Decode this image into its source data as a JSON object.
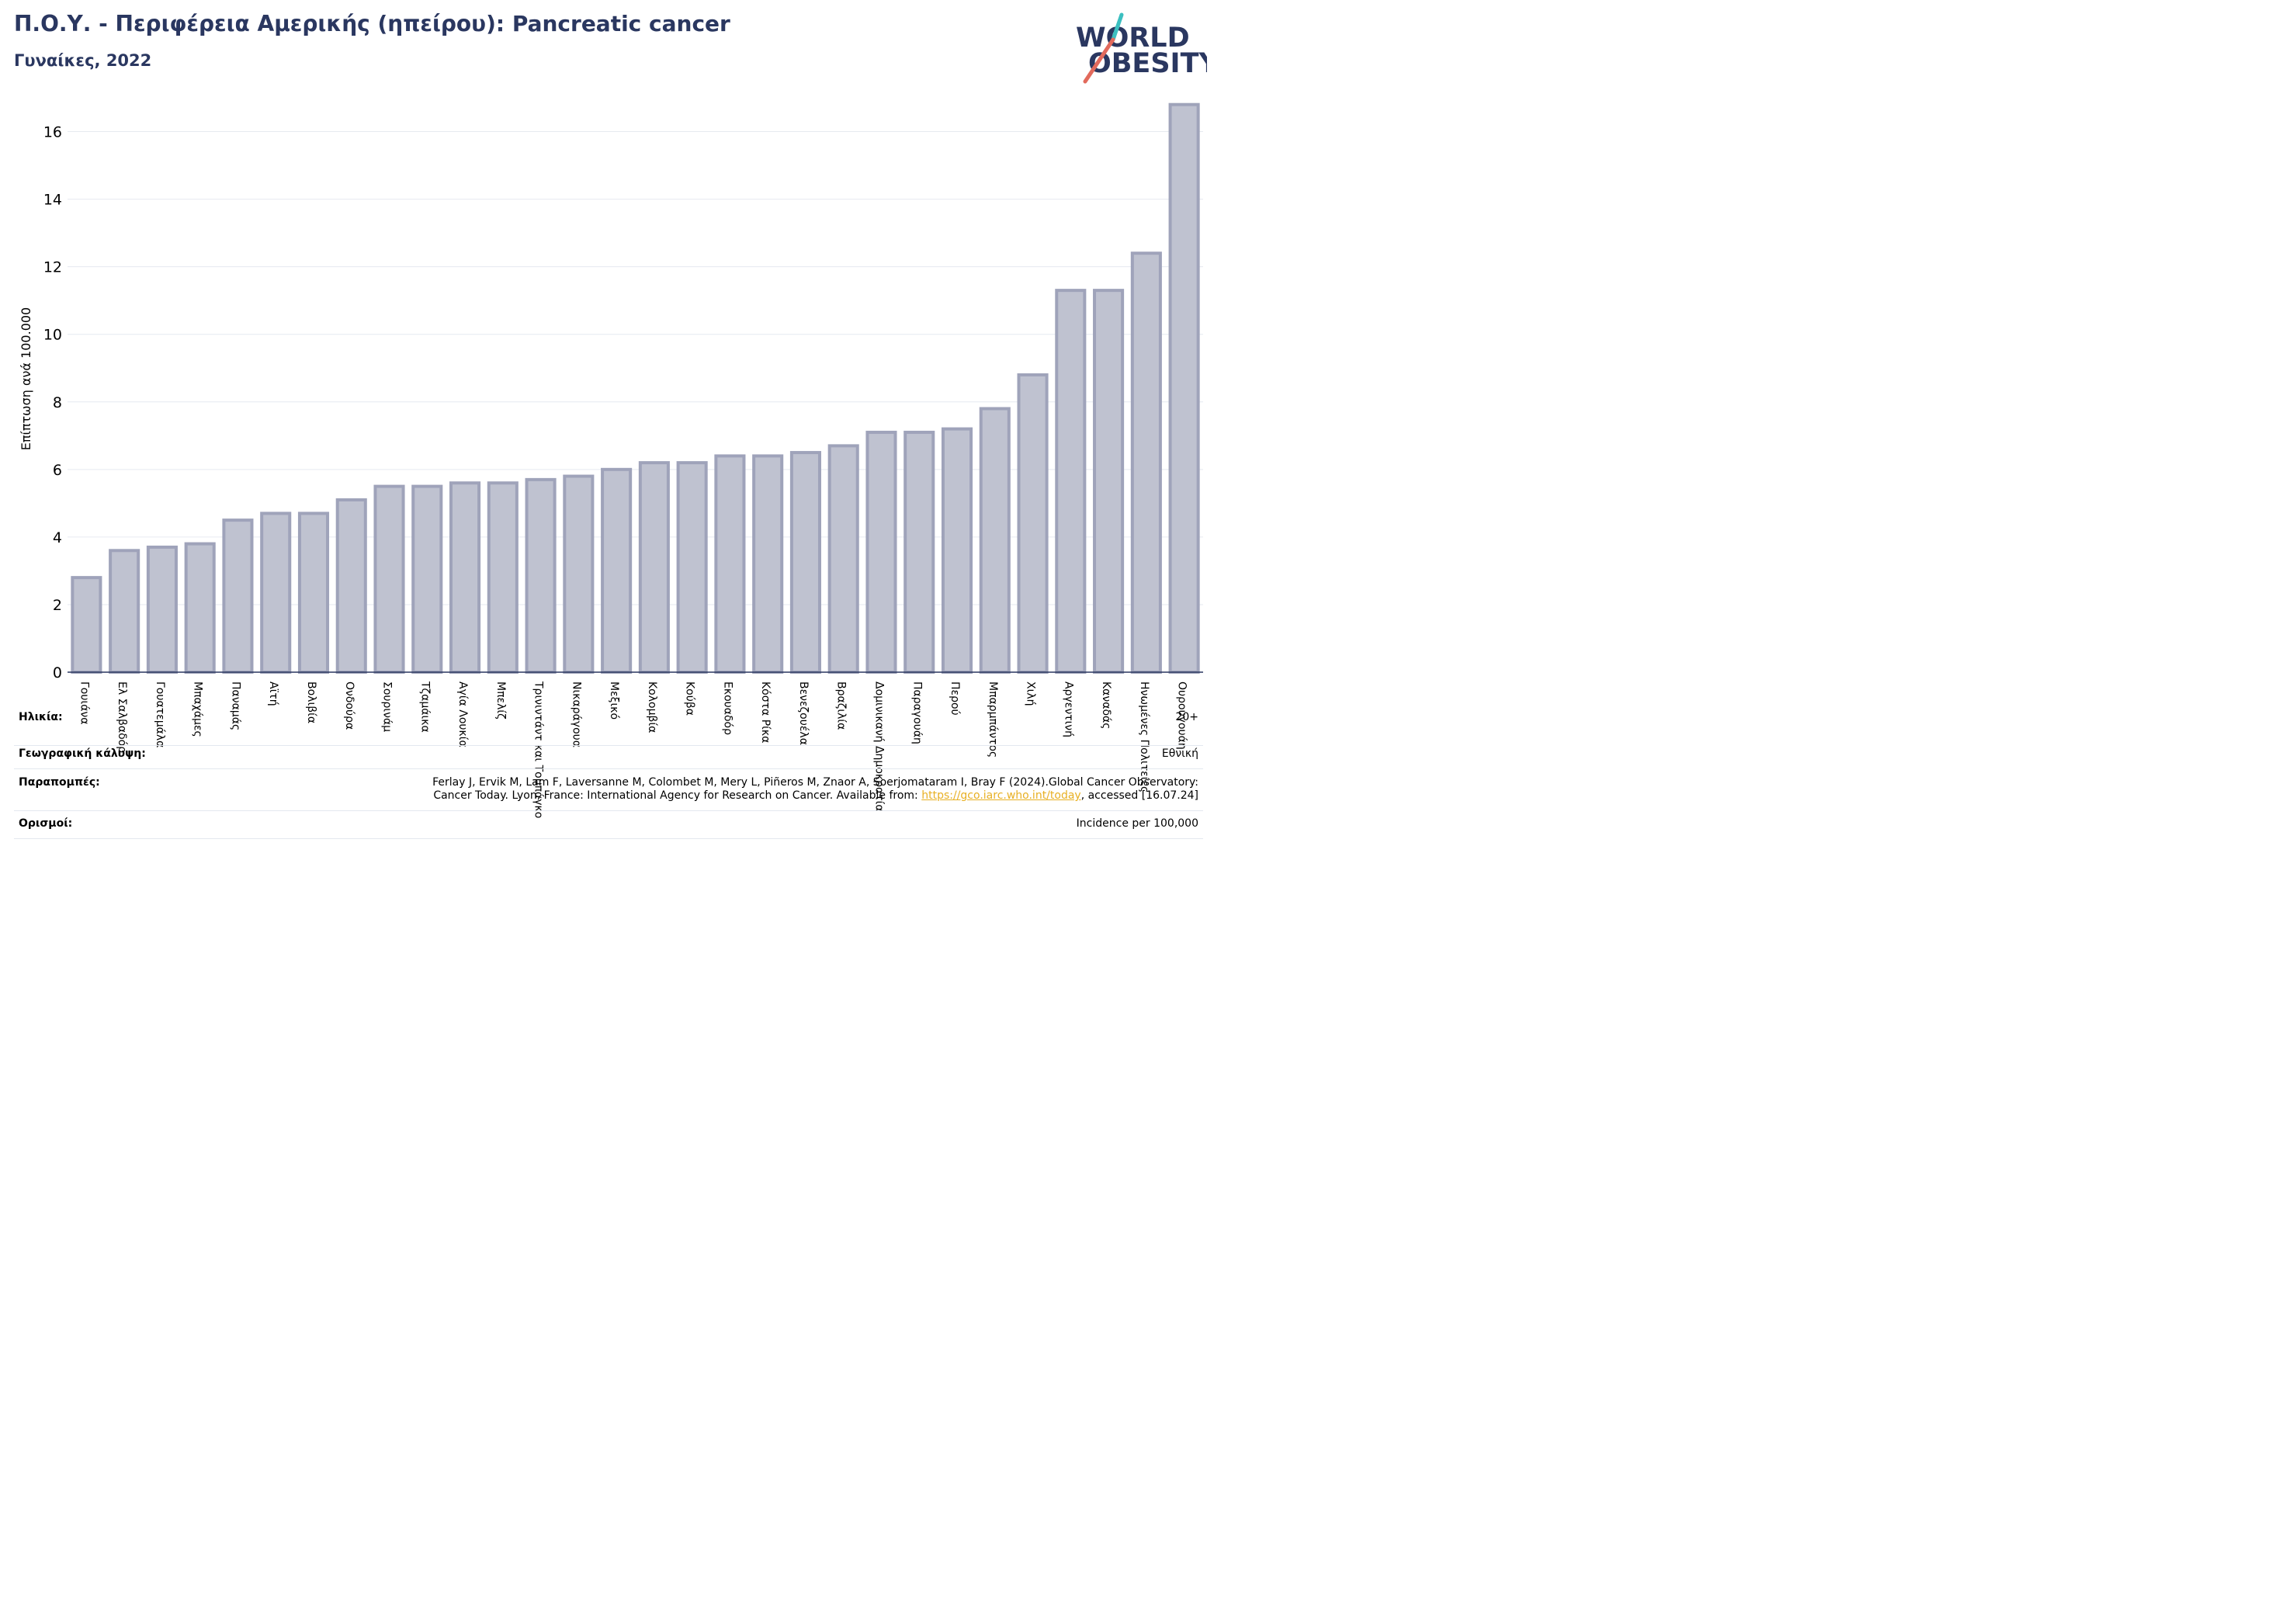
{
  "title": "Π.Ο.Υ. - Περιφέρεια Αμερικής (ηπείρου): Pancreatic cancer",
  "subtitle": "Γυναίκες, 2022",
  "logo": {
    "line1": "WORLD",
    "line2": "OBESITY"
  },
  "colors": {
    "title": "#2a3760",
    "bar_fill": "#bfc2d0",
    "bar_stroke": "#9fa3ba",
    "logo_teal": "#3bbfc0",
    "logo_coral": "#e26a5c",
    "link": "#e8b023"
  },
  "chart_data": {
    "type": "bar",
    "ylabel": "Επίπτωση ανά 100.000",
    "ylim": [
      0,
      17
    ],
    "yticks": [
      0,
      2,
      4,
      6,
      8,
      10,
      12,
      14,
      16
    ],
    "grid": true,
    "categories": [
      "Γουιάνα",
      "Ελ Σαλβαδόρ",
      "Γουατεμάλα",
      "Μπαχάμες",
      "Παναμάς",
      "Αϊτή",
      "Βολιβία",
      "Ονδούρα",
      "Σουρινάμ",
      "Τζαμάικα",
      "Αγία Λουκία",
      "Μπελίζ",
      "Τρινιντάντ και Τομπάγκο",
      "Νικαράγουα",
      "Μεξικό",
      "Κολομβία",
      "Κούβα",
      "Εκουαδόρ",
      "Κόστα Ρίκα",
      "Βενεζουέλα",
      "Βραζιλία",
      "Δομινικανή Δημοκρατία",
      "Παραγουάη",
      "Περού",
      "Μπαρμπάντος",
      "Χιλή",
      "Αργεντινή",
      "Καναδάς",
      "Ηνωμένες Πολιτείες",
      "Ουρουγουάη"
    ],
    "values": [
      2.8,
      3.6,
      3.7,
      3.8,
      4.5,
      4.7,
      4.7,
      5.1,
      5.5,
      5.5,
      5.6,
      5.6,
      5.7,
      5.8,
      6.0,
      6.2,
      6.2,
      6.4,
      6.4,
      6.5,
      6.7,
      7.1,
      7.1,
      7.2,
      7.8,
      8.8,
      11.3,
      11.3,
      12.4,
      16.8
    ]
  },
  "meta": {
    "age_label": "Ηλικία:",
    "age_value": "20+",
    "coverage_label": "Γεωγραφική κάλυψη:",
    "coverage_value": "Εθνική",
    "refs_label": "Παραπομπές:",
    "refs_line1": "Ferlay J, Ervik M, Lam F, Laversanne M, Colombet M, Mery L, Piñeros M, Znaor A, Soerjomataram I, Bray F (2024).Global Cancer Observatory:",
    "refs_line2_pre": "Cancer Today. Lyon, France: International Agency for Research on Cancer. Available from: ",
    "refs_link": "https://gco.iarc.who.int/today",
    "refs_line2_post": ", accessed [16.07.24]",
    "defs_label": "Ορισμοί:",
    "defs_value": "Incidence per 100,000"
  }
}
